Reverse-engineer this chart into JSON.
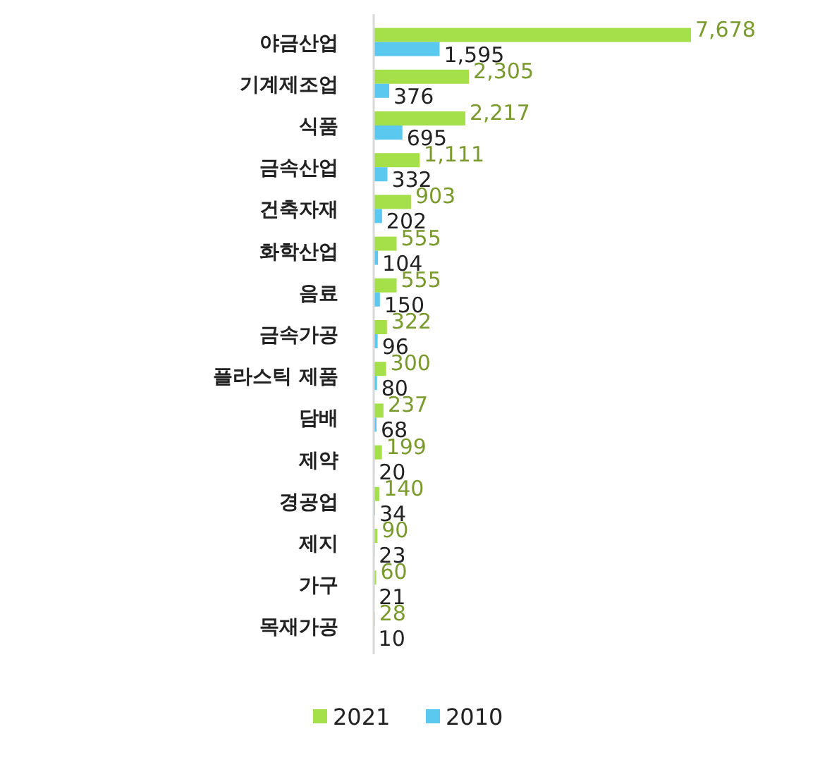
{
  "chart_data": {
    "type": "bar",
    "orientation": "horizontal",
    "legend": "bottom",
    "categories": [
      "야금산업",
      "기계제조업",
      "식품",
      "금속산업",
      "건축자재",
      "화학산업",
      "음료",
      "금속가공",
      "플라스틱 제품",
      "담배",
      "제약",
      "경공업",
      "제지",
      "가구",
      "목재가공"
    ],
    "series": [
      {
        "name": "2021",
        "color": "#a5e04b",
        "values": [
          7678,
          2305,
          2217,
          1111,
          903,
          555,
          555,
          322,
          300,
          237,
          199,
          140,
          90,
          60,
          28
        ],
        "value_labels": [
          "7,678",
          "2,305",
          "2,217",
          "1,111",
          "903",
          "555",
          "555",
          "322",
          "300",
          "237",
          "199",
          "140",
          "90",
          "60",
          "28"
        ]
      },
      {
        "name": "2010",
        "color": "#5bc8f0",
        "values": [
          1595,
          376,
          695,
          332,
          202,
          104,
          150,
          96,
          80,
          68,
          20,
          34,
          23,
          21,
          10
        ],
        "value_labels": [
          "1,595",
          "376",
          "695",
          "332",
          "202",
          "104",
          "150",
          "96",
          "80",
          "68",
          "20",
          "34",
          "23",
          "21",
          "10"
        ]
      }
    ]
  }
}
